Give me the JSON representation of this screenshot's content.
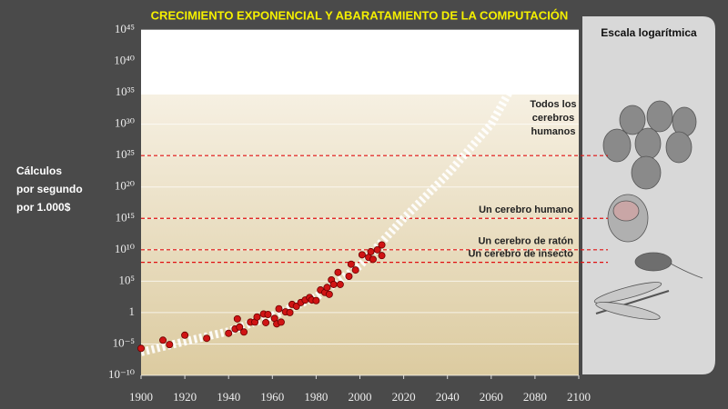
{
  "chart_data": {
    "type": "scatter",
    "title": "CRECIMIENTO EXPONENCIAL Y ABARATAMIENTO DE LA COMPUTACIÓN",
    "y_label": [
      "Cálculos",
      "por segundo",
      "por 1.000$"
    ],
    "panel_title": "Escala logarítmica",
    "xlim": [
      1900,
      2100
    ],
    "xticks": [
      1900,
      1920,
      1940,
      1960,
      1980,
      2000,
      2020,
      2040,
      2060,
      2080,
      2100
    ],
    "ylim": [
      1e-10,
      1e+45
    ],
    "y_scale": "log",
    "yticks": [
      {
        "value": 1e-10,
        "label": "10⁻¹⁰"
      },
      {
        "value": 1e-05,
        "label": "10⁻⁵"
      },
      1,
      {
        "value": 100000.0,
        "label": "10⁵"
      },
      {
        "value": 10000000000.0,
        "label": "10¹⁰"
      },
      {
        "value": 1000000000000000.0,
        "label": "10¹⁵"
      },
      {
        "value": 1e+20,
        "label": "10²⁰"
      },
      {
        "value": 1e+25,
        "label": "10²⁵"
      },
      {
        "value": 1e+30,
        "label": "10³⁰"
      },
      {
        "value": 1e+35,
        "label": "10³⁵"
      },
      {
        "value": 1e+40,
        "label": "10⁴⁰"
      },
      {
        "value": 1e+45,
        "label": "10⁴⁵"
      }
    ],
    "grid": true,
    "color": "#d01414",
    "x": [
      1900,
      1910,
      1913,
      1920,
      1930,
      1940,
      1943,
      1945,
      1944,
      1947,
      1950,
      1952,
      1953,
      1956,
      1957,
      1958,
      1961,
      1962,
      1963,
      1964,
      1966,
      1968,
      1969,
      1971,
      1973,
      1975,
      1977,
      1978,
      1980,
      1982,
      1984,
      1985,
      1986,
      1987,
      1988,
      1990,
      1991,
      1995,
      1996,
      1998,
      2001,
      2004,
      2005,
      2006,
      2008,
      2010,
      2010
    ],
    "values": [
      2e-06,
      4e-05,
      8e-06,
      0.00025,
      8e-05,
      0.0005,
      0.0025,
      0.005,
      0.1,
      0.0008,
      0.03,
      0.03,
      0.2,
      0.6,
      0.025,
      0.5,
      0.12,
      0.016,
      4,
      0.03,
      1.3,
      1,
      20,
      10,
      40,
      100,
      250,
      100,
      80,
      4000,
      1600,
      10000,
      800,
      160000,
      30000,
      2500000,
      30000,
      600000,
      50000000,
      6000000,
      1600000000,
      600000000,
      5000000000,
      300000000,
      10000000000,
      60000000000,
      1200000000
    ],
    "trend": {
      "color": "#ffffff",
      "x": [
        1900,
        1920,
        1940,
        1960,
        1980,
        2000,
        2020,
        2040,
        2060,
        2068
      ],
      "values": [
        5e-07,
        2.5e-05,
        0.001,
        0.3,
        300,
        30000000,
        1000000000000000.0,
        1e+22,
        1e+30,
        1e+35
      ]
    },
    "reference_lines": [
      {
        "label": [
          "Todos los",
          "cerebros",
          "humanos"
        ],
        "value": 1e+25
      },
      {
        "label": [
          "Un cerebro humano"
        ],
        "value": 1000000000000000.0
      },
      {
        "label": [
          "Un cerebro de ratón"
        ],
        "value": 10000000000.0
      },
      {
        "label": [
          "Un cerebro de insecto"
        ],
        "value": 100000000.0
      }
    ],
    "reference_color": "#e01010"
  }
}
